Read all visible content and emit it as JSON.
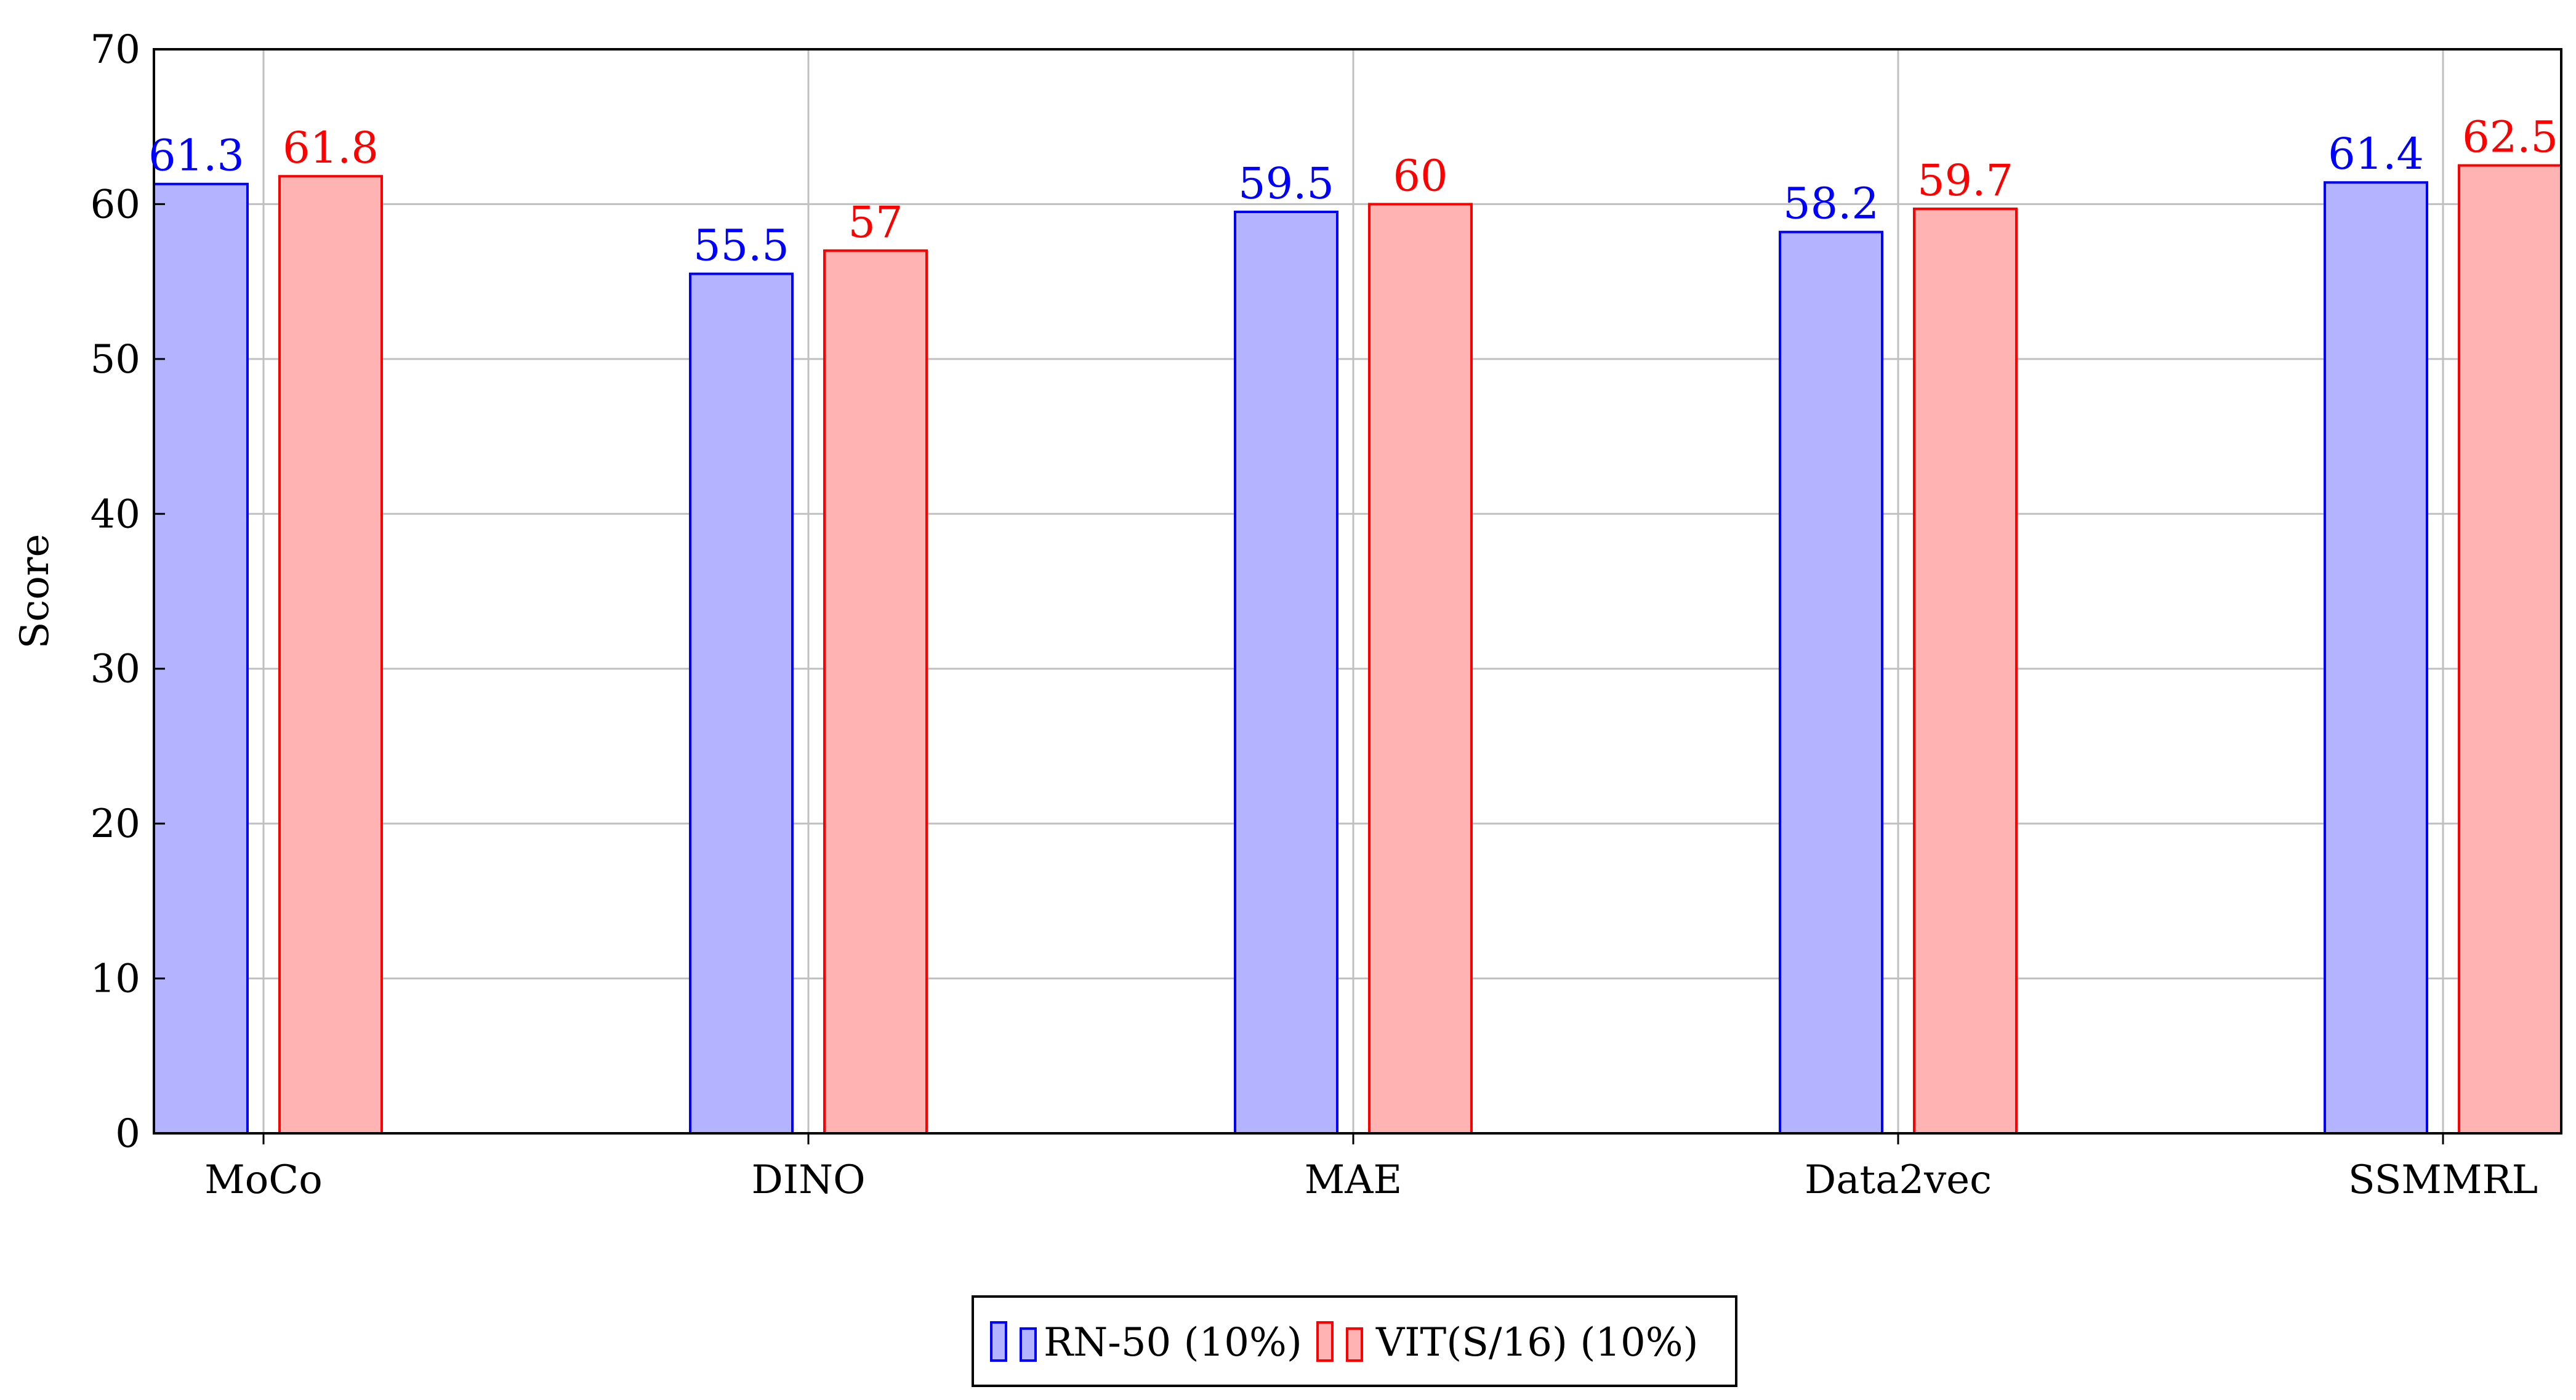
{
  "chart_data": {
    "type": "bar",
    "categories": [
      "MoCo",
      "DINO",
      "MAE",
      "Data2vec",
      "SSMMRL"
    ],
    "series": [
      {
        "name": "RN-50 (10%)",
        "values": [
          61.3,
          55.5,
          59.5,
          58.2,
          61.4
        ],
        "fill": "#b3b3ff",
        "stroke": "#0000ff",
        "label_color": "#0000ff"
      },
      {
        "name": "VIT(S/16) (10%)",
        "values": [
          61.8,
          57,
          60,
          59.7,
          62.5
        ],
        "fill": "#ffb3b3",
        "stroke": "#ff0000",
        "label_color": "#ff0000"
      }
    ],
    "xlabel": "",
    "ylabel": "Score",
    "ylim": [
      0,
      70
    ],
    "yticks": [
      0,
      10,
      20,
      30,
      40,
      50,
      60,
      70
    ],
    "grid": true,
    "legend_position": "bottom-center"
  }
}
